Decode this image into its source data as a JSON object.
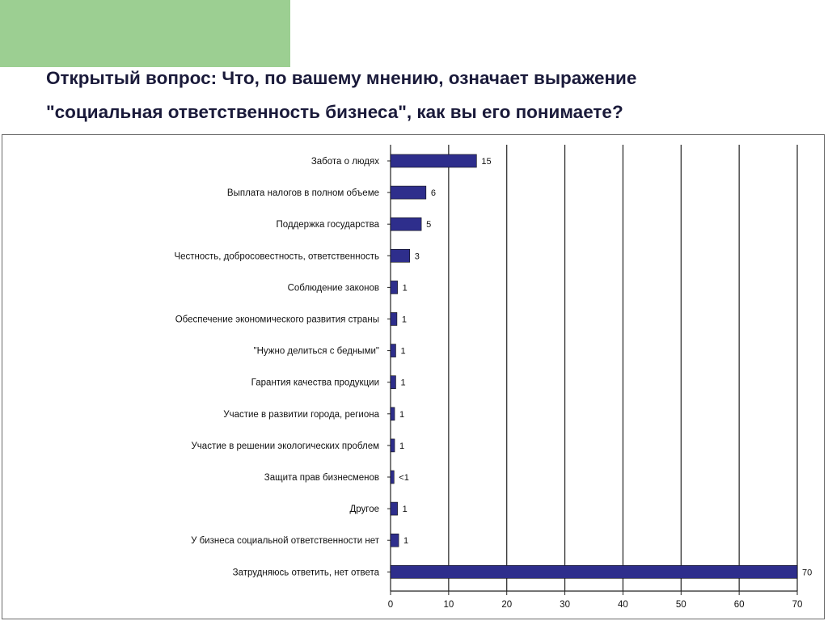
{
  "slide": {
    "title_line1": "Открытый вопрос: Что, по вашему мнению, означает выражение",
    "title_line2": "\"социальная ответственность бизнеса\", как вы его понимаете?"
  },
  "colors": {
    "bar": "#2e2e8c",
    "green_block": "#9ccf92",
    "title": "#1a1a3a"
  },
  "chart_data": {
    "type": "bar",
    "orientation": "horizontal",
    "title": "",
    "xlabel": "",
    "ylabel": "",
    "xlim": [
      0,
      70
    ],
    "ticks": [
      0,
      10,
      20,
      30,
      40,
      50,
      60,
      70
    ],
    "grid": "vertical",
    "legend": "none",
    "categories": [
      "Забота о людях",
      "Выплата налогов в полном объеме",
      "Поддержка государства",
      "Честность, добросовестность, ответственность",
      "Соблюдение законов",
      "Обеспечение экономического развития страны",
      "\"Нужно делиться с бедными\"",
      "Гарантия качества продукции",
      "Участие в развитии города, региона",
      "Участие в решении экологических проблем",
      "Защита прав бизнесменов",
      "Другое",
      "У бизнеса социальной ответственности нет",
      "Затрудняюсь ответить, нет ответа"
    ],
    "values": [
      14.8,
      6.1,
      5.3,
      3.3,
      1.2,
      1.1,
      0.9,
      0.9,
      0.7,
      0.7,
      0.6,
      1.2,
      1.4,
      70
    ],
    "data_labels": [
      "15",
      "6",
      "5",
      "3",
      "1",
      "1",
      "1",
      "1",
      "1",
      "1",
      "<1",
      "1",
      "1",
      "70"
    ]
  }
}
